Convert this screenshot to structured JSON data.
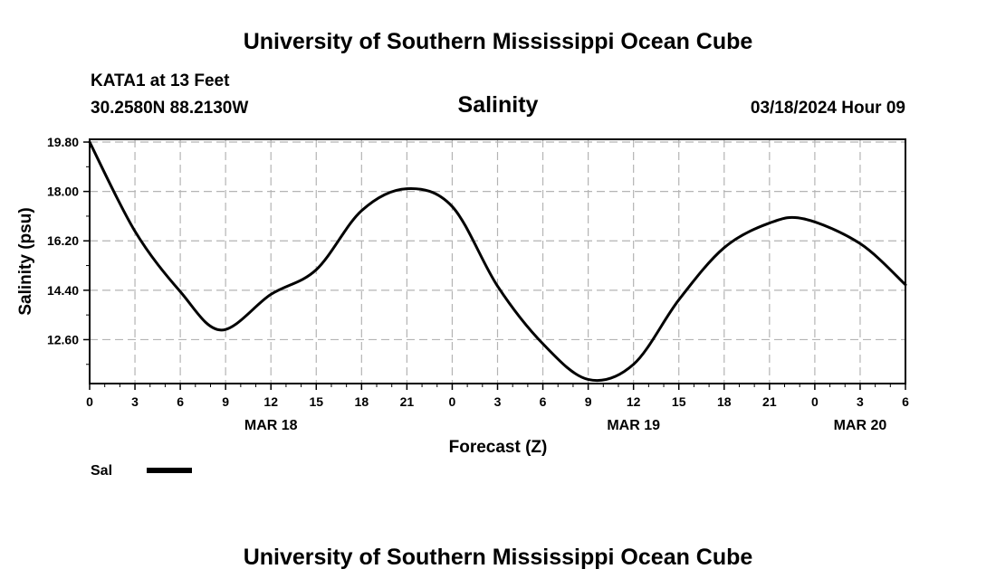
{
  "header": {
    "title": "University of Southern Mississippi Ocean Cube",
    "station": "KATA1 at 13 Feet",
    "coords": "30.2580N  88.2130W",
    "variable": "Salinity",
    "datetime": "03/18/2024 Hour 09"
  },
  "footer": {
    "title": "University of Southern Mississippi Ocean Cube"
  },
  "legend": {
    "label": "Sal"
  },
  "chart_data": {
    "type": "line",
    "xlabel": "Forecast (Z)",
    "ylabel": "Salinity (psu)",
    "xlim": [
      0,
      54
    ],
    "ylim": [
      11.0,
      19.9
    ],
    "grid": true,
    "legend_position": "bottom-left",
    "x_ticks": [
      0,
      3,
      6,
      9,
      12,
      15,
      18,
      21,
      24,
      27,
      30,
      33,
      36,
      39,
      42,
      45,
      48,
      51,
      54
    ],
    "x_tick_labels": [
      "0",
      "3",
      "6",
      "9",
      "12",
      "15",
      "18",
      "21",
      "0",
      "3",
      "6",
      "9",
      "12",
      "15",
      "18",
      "21",
      "0",
      "3",
      "6"
    ],
    "date_labels": [
      {
        "x": 12,
        "label": "MAR 18"
      },
      {
        "x": 36,
        "label": "MAR 19"
      },
      {
        "x": 51,
        "label": "MAR 20"
      }
    ],
    "y_ticks": [
      12.6,
      14.4,
      16.2,
      18.0,
      19.8
    ],
    "y_tick_labels": [
      "12.60",
      "14.40",
      "16.20",
      "18.00",
      "19.80"
    ],
    "series": [
      {
        "name": "Sal",
        "color": "#000000",
        "x": [
          0,
          3,
          6,
          8.7,
          12,
          15,
          18,
          21,
          24,
          27,
          30,
          33,
          36,
          39,
          42,
          45,
          47.3,
          51,
          54
        ],
        "values": [
          19.8,
          16.55,
          14.35,
          12.95,
          14.25,
          15.15,
          17.3,
          18.1,
          17.45,
          14.55,
          12.45,
          11.15,
          11.7,
          14.05,
          15.95,
          16.85,
          17.0,
          16.1,
          14.6
        ]
      }
    ]
  }
}
